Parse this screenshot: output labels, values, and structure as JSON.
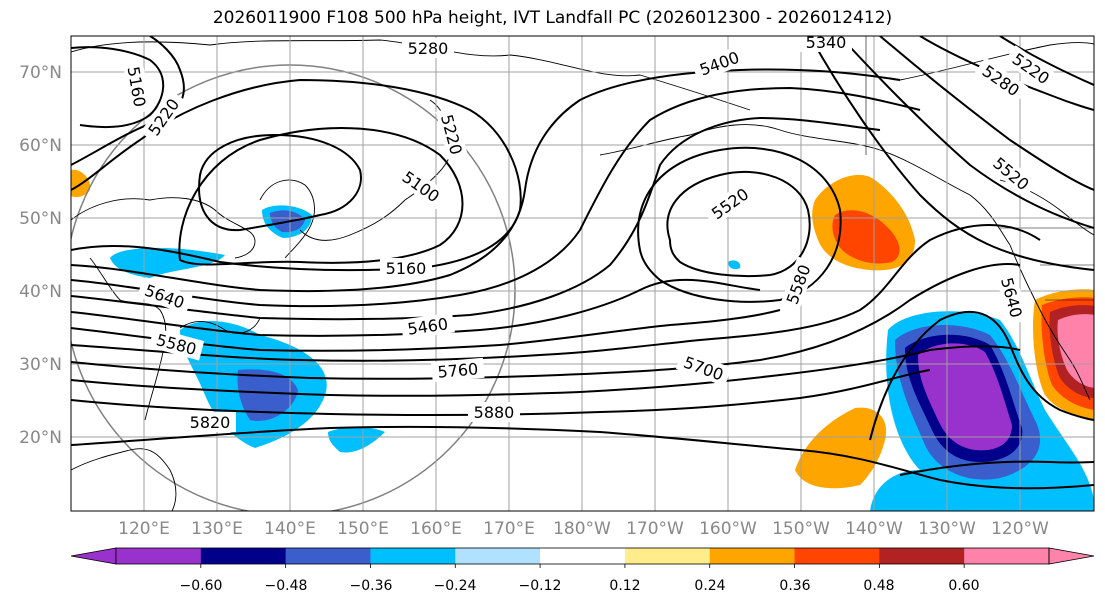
{
  "title": "2026011900 F108 500 hPa height, IVT Landfall PC (2026012300 - 2026012412)",
  "map": {
    "lat_labels": [
      "70°N",
      "60°N",
      "50°N",
      "40°N",
      "30°N",
      "20°N"
    ],
    "lon_labels": [
      "120°E",
      "130°E",
      "140°E",
      "150°E",
      "160°E",
      "170°E",
      "180°W",
      "170°W",
      "160°W",
      "150°W",
      "140°W",
      "130°W",
      "120°W"
    ],
    "contour_labels": [
      "5280",
      "5340",
      "5160",
      "5220",
      "5220",
      "5100",
      "5160",
      "5460",
      "5760",
      "5880",
      "5820",
      "5580",
      "5640",
      "5400",
      "5520",
      "5580",
      "5700",
      "5280",
      "5220",
      "5520",
      "5640"
    ]
  },
  "colorbar": {
    "ticks": [
      "−0.60",
      "−0.48",
      "−0.36",
      "−0.24",
      "−0.12",
      "0.12",
      "0.24",
      "0.36",
      "0.48",
      "0.60"
    ],
    "colors": [
      "#9932cc",
      "#00008b",
      "#3a5fcd",
      "#00bfff",
      "#b0e2ff",
      "#ffffff",
      "#ffec8b",
      "#ffa500",
      "#ff4500",
      "#b22222",
      "#ff82ab"
    ]
  },
  "colors": {
    "frame": "#000000",
    "grid": "#a0a0a0",
    "ring": "#808080"
  }
}
